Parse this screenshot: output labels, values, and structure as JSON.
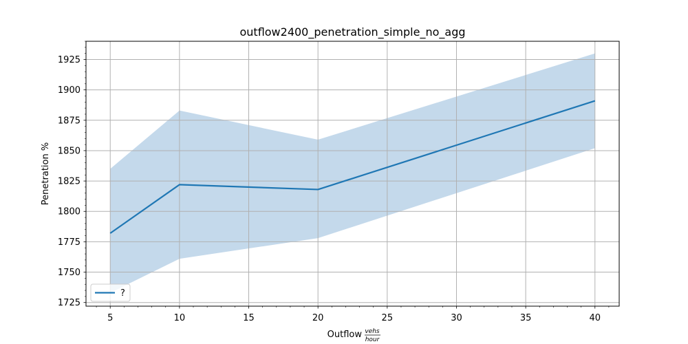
{
  "chart_data": {
    "type": "line",
    "title": "outflow2400_penetration_simple_no_agg",
    "xlabel": "Outflow",
    "xlabel_unit_numerator": "vehs",
    "xlabel_unit_denominator": "hour",
    "ylabel": "Penetration %",
    "xlim": [
      3.25,
      41.75
    ],
    "ylim": [
      1722,
      1940
    ],
    "xticks": [
      5,
      10,
      15,
      20,
      25,
      30,
      35,
      40
    ],
    "yticks": [
      1725,
      1750,
      1775,
      1800,
      1825,
      1850,
      1875,
      1900,
      1925
    ],
    "x_minor_step": 1,
    "y_minor_step": 5,
    "grid": true,
    "legend_position": "lower-left",
    "series": [
      {
        "name": "?",
        "color": "#1f77b4",
        "x": [
          5,
          10,
          20,
          40
        ],
        "y": [
          1782,
          1822,
          1818,
          1891
        ],
        "band_lower": [
          1733,
          1761,
          1778,
          1852
        ],
        "band_upper": [
          1835,
          1883,
          1859,
          1930
        ],
        "band_color": "#c4d9eb"
      }
    ]
  }
}
